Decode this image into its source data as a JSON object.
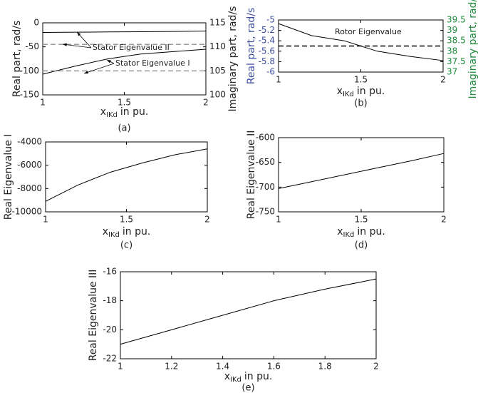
{
  "chart_data": [
    {
      "type": "line",
      "caption": "(a)",
      "xlabel": {
        "main": "x",
        "sub": "IKd",
        "rest": "in pu."
      },
      "ylabel": "Real part, rad/s",
      "y2label": "Imaginary part, rad/s",
      "x": [
        1,
        1.2,
        1.4,
        1.6,
        1.8,
        2
      ],
      "xlim": [
        1,
        2
      ],
      "xticks": [
        1,
        1.5,
        2
      ],
      "ylim": [
        -150,
        0
      ],
      "yticks": [
        0,
        -50,
        -100,
        -150
      ],
      "y2lim": [
        100,
        115
      ],
      "y2ticks": [
        100,
        105,
        110,
        115
      ],
      "series": [
        {
          "color": "#000000",
          "style": "solid",
          "values": [
            -20,
            -19.5,
            -19,
            -18.5,
            -18,
            -17
          ]
        },
        {
          "color": "#000000",
          "style": "solid",
          "values": [
            -107,
            -90,
            -75,
            -65,
            -60,
            -55
          ]
        },
        {
          "color": "#999999",
          "style": "dashed",
          "axis": "y2",
          "values": [
            110.5,
            110.5,
            110.5,
            110.5,
            110.5,
            110.5
          ]
        },
        {
          "color": "#999999",
          "style": "dashed",
          "axis": "y2",
          "values": [
            105,
            105,
            105,
            105,
            105,
            105
          ]
        }
      ],
      "annotations": [
        "Stator Eigenvalue II",
        "Stator Eigenvalue I"
      ]
    },
    {
      "type": "line",
      "caption": "(b)",
      "xlabel": {
        "main": "x",
        "sub": "IKd",
        "rest": "in pu."
      },
      "ylabel": "Real part, rad/s",
      "y2label": "Imaginary part, rad/s",
      "ylabel_color": "#3d4f9e",
      "y2label_color": "#1e8a3c",
      "x": [
        1,
        1.2,
        1.4,
        1.6,
        1.8,
        2
      ],
      "xlim": [
        1,
        2
      ],
      "xticks": [
        1,
        1.5,
        2
      ],
      "ylim": [
        -6,
        -5
      ],
      "yticks": [
        -5,
        -5.2,
        -5.4,
        -5.6,
        -5.8,
        -6
      ],
      "y2lim": [
        37,
        39.5
      ],
      "y2ticks": [
        37,
        37.5,
        38,
        38.5,
        39,
        39.5
      ],
      "series": [
        {
          "color": "#000000",
          "style": "solid",
          "values": [
            -5.07,
            -5.3,
            -5.4,
            -5.6,
            -5.7,
            -5.78
          ]
        },
        {
          "color": "#000000",
          "style": "dashed",
          "axis": "y2",
          "values": [
            38.25,
            38.25,
            38.25,
            38.25,
            38.25,
            38.25
          ]
        }
      ],
      "annotations": [
        "Rotor Eigenvalue"
      ]
    },
    {
      "type": "line",
      "caption": "(c)",
      "xlabel": {
        "main": "x",
        "sub": "IKd",
        "rest": "in pu."
      },
      "ylabel": "Real Eigenvalue I",
      "x": [
        1,
        1.2,
        1.4,
        1.6,
        1.8,
        2
      ],
      "xlim": [
        1,
        2
      ],
      "xticks": [
        1,
        1.5,
        2
      ],
      "ylim": [
        -10000,
        -4000
      ],
      "yticks": [
        -4000,
        -6000,
        -8000,
        -10000
      ],
      "series": [
        {
          "color": "#000000",
          "style": "solid",
          "values": [
            -9100,
            -7700,
            -6600,
            -5800,
            -5100,
            -4600
          ]
        }
      ]
    },
    {
      "type": "line",
      "caption": "(d)",
      "xlabel": {
        "main": "x",
        "sub": "IKd",
        "rest": "in pu."
      },
      "ylabel": "Real Eigenvalue II",
      "x": [
        1,
        1.2,
        1.4,
        1.6,
        1.8,
        2
      ],
      "xlim": [
        1,
        2
      ],
      "xticks": [
        1,
        1.5,
        2
      ],
      "ylim": [
        -750,
        -600
      ],
      "yticks": [
        -600,
        -650,
        -700,
        -750
      ],
      "series": [
        {
          "color": "#000000",
          "style": "solid",
          "values": [
            -703,
            -689,
            -675,
            -661,
            -647,
            -632
          ]
        }
      ]
    },
    {
      "type": "line",
      "caption": "(e)",
      "xlabel": {
        "main": "x",
        "sub": "IKd",
        "rest": "in pu."
      },
      "ylabel": "Real Eigenvalue III",
      "x": [
        1,
        1.2,
        1.4,
        1.6,
        1.8,
        2
      ],
      "xlim": [
        1,
        2
      ],
      "xticks": [
        1,
        1.2,
        1.4,
        1.6,
        1.8,
        2
      ],
      "ylim": [
        -22,
        -16
      ],
      "yticks": [
        -16,
        -18,
        -20,
        -22
      ],
      "series": [
        {
          "color": "#000000",
          "style": "solid",
          "values": [
            -21,
            -20,
            -19,
            -18,
            -17.2,
            -16.5
          ]
        }
      ]
    }
  ]
}
